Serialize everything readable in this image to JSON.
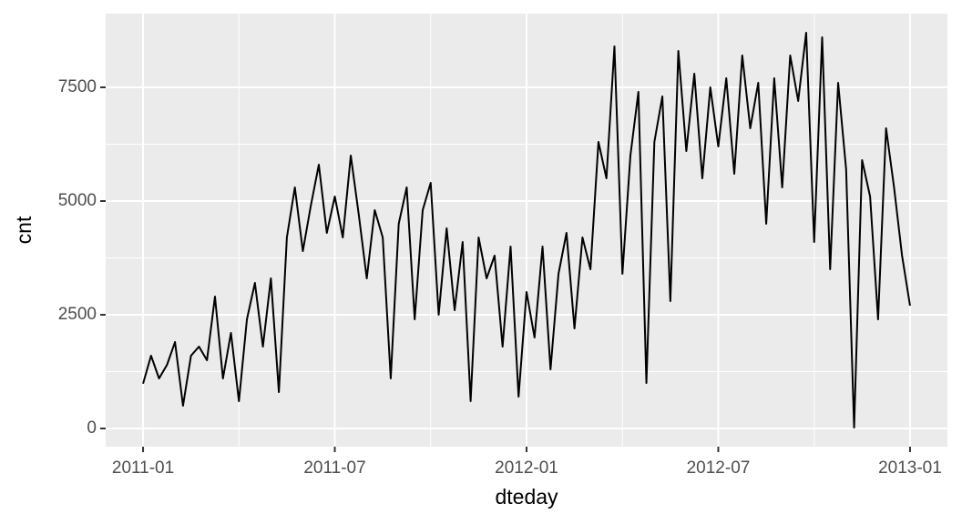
{
  "chart_data": {
    "type": "line",
    "x_label": "dteday",
    "y_label": "cnt",
    "x": [
      0,
      0.25,
      0.5,
      0.75,
      1,
      1.25,
      1.5,
      1.75,
      2,
      2.25,
      2.5,
      2.75,
      3,
      3.25,
      3.5,
      3.75,
      4,
      4.25,
      4.5,
      4.75,
      5,
      5.25,
      5.5,
      5.75,
      6,
      6.25,
      6.5,
      6.75,
      7,
      7.25,
      7.5,
      7.75,
      8,
      8.25,
      8.5,
      8.75,
      9,
      9.25,
      9.5,
      9.75,
      10,
      10.25,
      10.5,
      10.75,
      11,
      11.25,
      11.5,
      11.75,
      12,
      12.25,
      12.5,
      12.75,
      13,
      13.25,
      13.5,
      13.75,
      14,
      14.25,
      14.5,
      14.75,
      15,
      15.25,
      15.5,
      15.75,
      16,
      16.25,
      16.5,
      16.75,
      17,
      17.25,
      17.5,
      17.75,
      18,
      18.25,
      18.5,
      18.75,
      19,
      19.25,
      19.5,
      19.75,
      20,
      20.25,
      20.5,
      20.75,
      21,
      21.25,
      21.5,
      21.75,
      22,
      22.25,
      22.5,
      22.75,
      23,
      23.25,
      23.5,
      23.75,
      24
    ],
    "series": [
      {
        "color": "#000000",
        "values": [
          985,
          1600,
          1100,
          1400,
          1900,
          500,
          1600,
          1800,
          1500,
          2900,
          1100,
          2100,
          600,
          2400,
          3200,
          1800,
          3300,
          800,
          4200,
          5300,
          3900,
          4900,
          5800,
          4300,
          5100,
          4200,
          6000,
          4700,
          3300,
          4800,
          4200,
          1100,
          4500,
          5300,
          2400,
          4800,
          5400,
          2500,
          4400,
          2600,
          4100,
          600,
          4200,
          3300,
          3800,
          1800,
          4000,
          700,
          3000,
          2000,
          4000,
          1300,
          3400,
          4300,
          2200,
          4200,
          3500,
          6300,
          5500,
          8400,
          3400,
          6000,
          7400,
          1000,
          6300,
          7300,
          2800,
          8300,
          6100,
          7800,
          5500,
          7500,
          6200,
          7700,
          5600,
          8200,
          6600,
          7600,
          4500,
          7700,
          5300,
          8200,
          7200,
          8700,
          4100,
          8600,
          3500,
          7600,
          5700,
          20,
          5900,
          5100,
          2400,
          6600,
          5300,
          3800,
          2700
        ]
      }
    ],
    "xlim": [
      -1.17,
      25.17
    ],
    "xticks": [
      {
        "value": 0,
        "label": "2011-01"
      },
      {
        "value": 6,
        "label": "2011-07"
      },
      {
        "value": 12,
        "label": "2012-01"
      },
      {
        "value": 18,
        "label": "2012-07"
      },
      {
        "value": 24,
        "label": "2013-01"
      }
    ],
    "x_minor_grid": [
      3,
      9,
      15,
      21
    ],
    "ylim": [
      -400,
      9120
    ],
    "yticks": [
      0,
      2500,
      5000,
      7500
    ],
    "y_minor_grid": [
      1250,
      3750,
      6250
    ],
    "grid": true
  }
}
